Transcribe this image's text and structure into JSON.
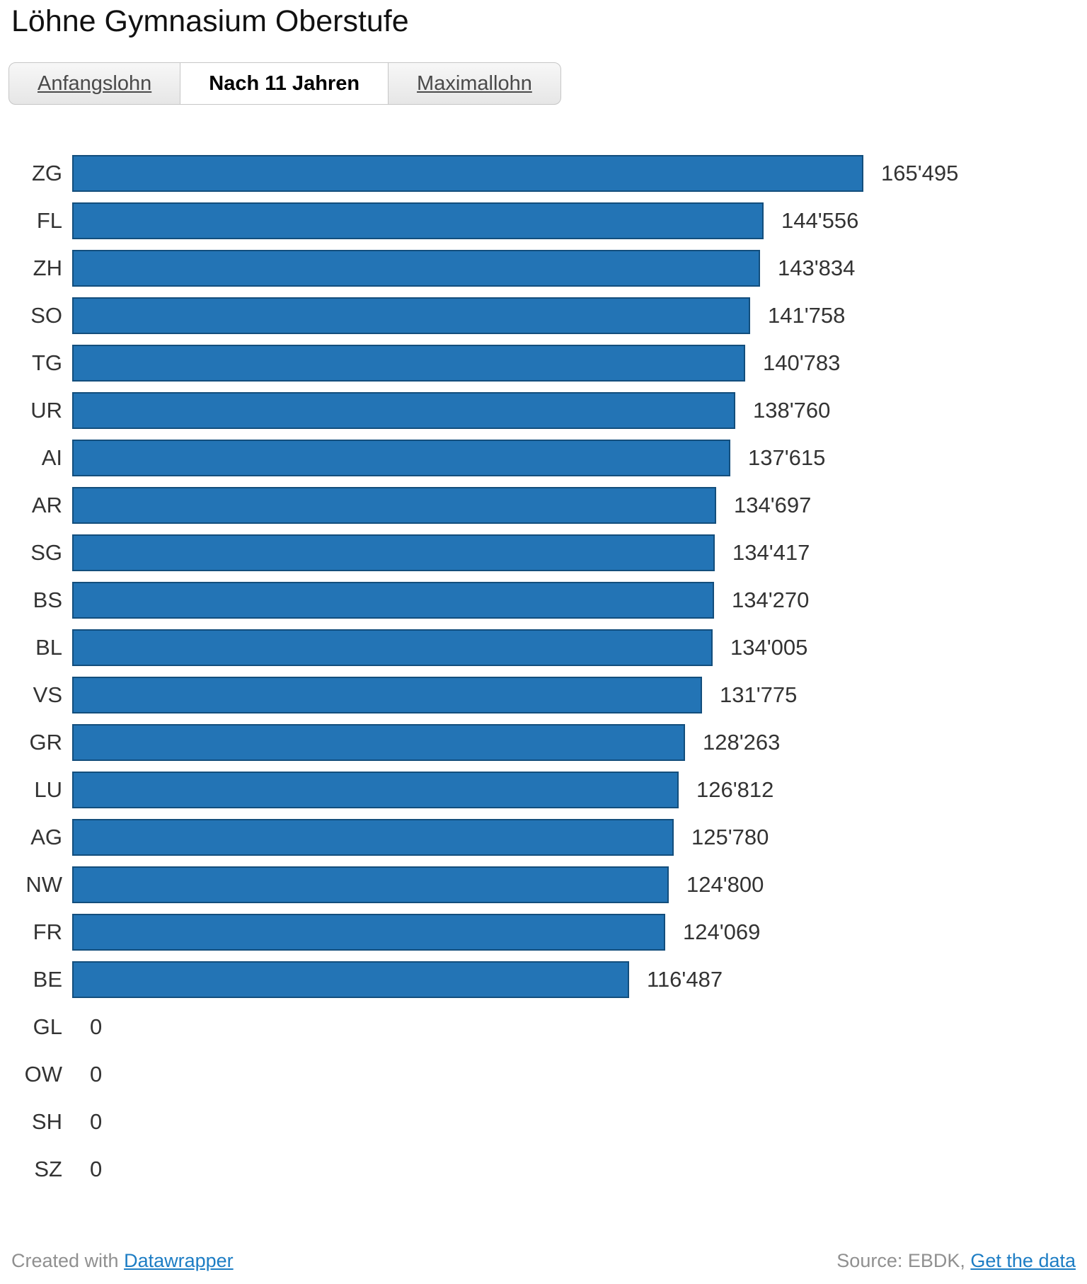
{
  "title": "Löhne Gymnasium Oberstufe",
  "tabs": [
    {
      "label": "Anfangslohn",
      "active": false
    },
    {
      "label": "Nach 11 Jahren",
      "active": true
    },
    {
      "label": "Maximallohn",
      "active": false
    }
  ],
  "chart_data": {
    "type": "bar",
    "orientation": "horizontal",
    "title": "Löhne Gymnasium Oberstufe",
    "selected_series": "Nach 11 Jahren",
    "categories": [
      "ZG",
      "FL",
      "ZH",
      "SO",
      "TG",
      "UR",
      "AI",
      "AR",
      "SG",
      "BS",
      "BL",
      "VS",
      "GR",
      "LU",
      "AG",
      "NW",
      "FR",
      "BE",
      "GL",
      "OW",
      "SH",
      "SZ"
    ],
    "values": [
      165495,
      144556,
      143834,
      141758,
      140783,
      138760,
      137615,
      134697,
      134417,
      134270,
      134005,
      131775,
      128263,
      126812,
      125780,
      124800,
      124069,
      116487,
      0,
      0,
      0,
      0
    ],
    "value_labels": [
      "165'495",
      "144'556",
      "143'834",
      "141'758",
      "140'783",
      "138'760",
      "137'615",
      "134'697",
      "134'417",
      "134'270",
      "134'005",
      "131'775",
      "128'263",
      "126'812",
      "125'780",
      "124'800",
      "124'069",
      "116'487",
      "0",
      "0",
      "0",
      "0"
    ],
    "axis_max": 165495,
    "bar_color": "#2374b5",
    "bar_border_color": "#134e7c",
    "grid": false,
    "legend": false
  },
  "footer": {
    "created_prefix": "Created with ",
    "created_link": "Datawrapper",
    "source_prefix": "Source: EBDK, ",
    "source_link": "Get the data"
  },
  "colors": {
    "accent": "#2374b5",
    "bar_border": "#134e7c",
    "link": "#1d7dc4",
    "footer_text": "#909090"
  }
}
